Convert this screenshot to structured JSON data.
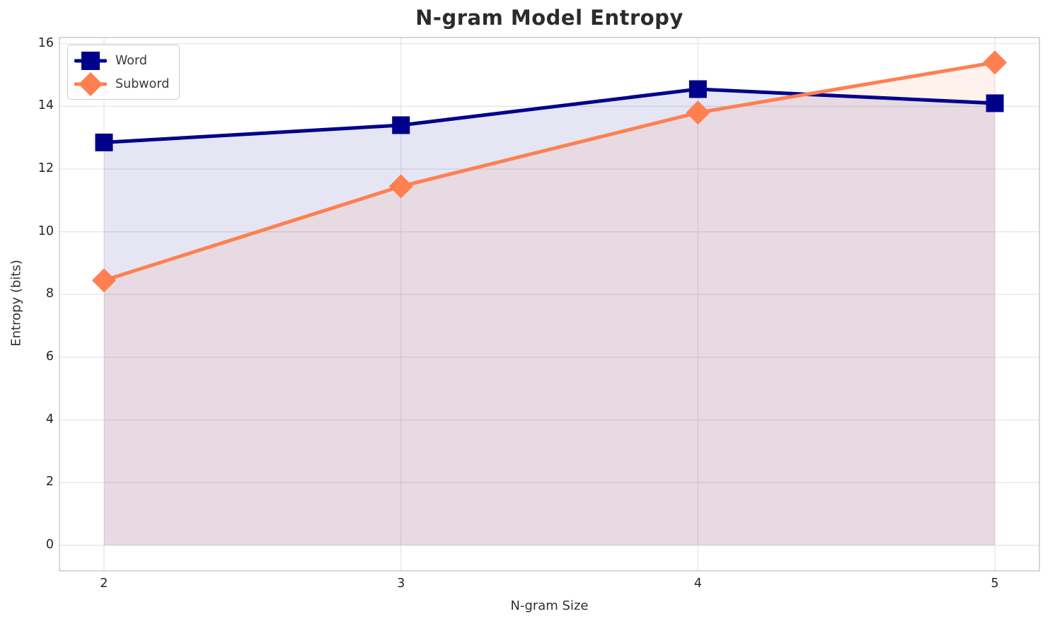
{
  "chart_data": {
    "type": "line",
    "title": "N-gram Model Entropy",
    "xlabel": "N-gram Size",
    "ylabel": "Entropy (bits)",
    "x": [
      2,
      3,
      4,
      5
    ],
    "series": [
      {
        "name": "Word",
        "marker": "square",
        "color": "#00008B",
        "values": [
          12.85,
          13.4,
          14.55,
          14.1
        ]
      },
      {
        "name": "Subword",
        "marker": "diamond",
        "color": "#FF7F50",
        "values": [
          8.45,
          11.45,
          13.8,
          15.4
        ]
      }
    ],
    "xticks": [
      2,
      3,
      4,
      5
    ],
    "yticks": [
      0,
      2,
      4,
      6,
      8,
      10,
      12,
      14,
      16
    ],
    "ylim": [
      0,
      16
    ],
    "grid": true,
    "area_fill_to_zero": true,
    "fill_alpha": 0.1,
    "legend_position": "upper-left",
    "colors": {
      "grid": "#e7e7e7",
      "spine": "#cccccc",
      "text": "#262626",
      "background": "#ffffff"
    }
  }
}
